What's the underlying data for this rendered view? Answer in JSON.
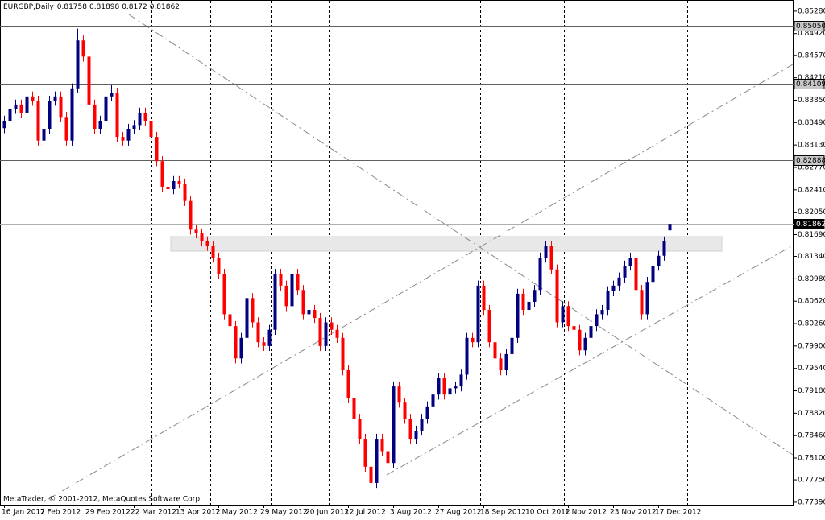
{
  "chart_data": {
    "type": "candlestick",
    "title": "EURGBP,Daily",
    "footer": "MetaTrader, © 2001-2012, MetaQuotes Software Corp.",
    "up_color": "#000080",
    "down_color": "#ff0000",
    "ylim": [
      0.7735,
      0.8546
    ],
    "yticks": [
      {
        "value": 0.8528,
        "label": "0.85280"
      },
      {
        "value": 0.8492,
        "label": "0.84920"
      },
      {
        "value": 0.8457,
        "label": "0.84570"
      },
      {
        "value": 0.8421,
        "label": "0.84210"
      },
      {
        "value": 0.8385,
        "label": "0.83850"
      },
      {
        "value": 0.8349,
        "label": "0.83490"
      },
      {
        "value": 0.8313,
        "label": "0.83130"
      },
      {
        "value": 0.8277,
        "label": "0.82770"
      },
      {
        "value": 0.8241,
        "label": "0.82410"
      },
      {
        "value": 0.8205,
        "label": "0.82050"
      },
      {
        "value": 0.8169,
        "label": "0.81690"
      },
      {
        "value": 0.8134,
        "label": "0.81340"
      },
      {
        "value": 0.8098,
        "label": "0.80980"
      },
      {
        "value": 0.8062,
        "label": "0.80620"
      },
      {
        "value": 0.8026,
        "label": "0.80260"
      },
      {
        "value": 0.799,
        "label": "0.79900"
      },
      {
        "value": 0.7954,
        "label": "0.79540"
      },
      {
        "value": 0.7918,
        "label": "0.79180"
      },
      {
        "value": 0.7882,
        "label": "0.78820"
      },
      {
        "value": 0.7846,
        "label": "0.78460"
      },
      {
        "value": 0.781,
        "label": "0.78100"
      },
      {
        "value": 0.7775,
        "label": "0.77750"
      },
      {
        "value": 0.7739,
        "label": "0.77390"
      }
    ],
    "levels": [
      {
        "value": 0.8505,
        "label": "0.85050"
      },
      {
        "value": 0.84109,
        "label": "0.84109"
      },
      {
        "value": 0.82888,
        "label": "0.82888"
      },
      {
        "value": 0.81862,
        "label": "0.81862"
      }
    ],
    "categories": [
      "16 Jan 2012",
      null,
      null,
      null,
      null,
      null,
      null,
      "7 Feb 2012",
      null,
      null,
      null,
      null,
      null,
      null,
      null,
      "29 Feb 2012",
      null,
      null,
      null,
      null,
      null,
      null,
      null,
      "22 Mar 2012",
      null,
      null,
      null,
      null,
      null,
      null,
      null,
      "13 Apr 2012",
      null,
      null,
      null,
      null,
      null,
      null,
      "7 May 2012",
      null,
      null,
      null,
      null,
      null,
      null,
      null,
      "29 May 2012",
      null,
      null,
      null,
      null,
      null,
      null,
      null,
      "20 Jun 2012",
      null,
      null,
      null,
      null,
      null,
      null,
      "12 Jul 2012",
      null,
      null,
      null,
      null,
      null,
      null,
      null,
      "3 Aug 2012",
      null,
      null,
      null,
      null,
      null,
      null,
      null,
      "27 Aug 2012",
      null,
      null,
      null,
      null,
      null,
      null,
      null,
      "18 Sep 2012",
      null,
      null,
      null,
      null,
      null,
      null,
      null,
      "10 Oct 2012",
      null,
      null,
      null,
      null,
      null,
      null,
      "1 Nov 2012",
      null,
      null,
      null,
      null,
      null,
      null,
      null,
      "23 Nov 2012",
      null,
      null,
      null,
      null,
      null,
      null,
      null,
      "17 Dec 2012",
      null,
      null
    ],
    "open": [
      0.834,
      0.8352,
      0.8371,
      0.8378,
      0.8365,
      0.8391,
      0.8384,
      0.832,
      0.8339,
      0.8384,
      0.8391,
      0.8358,
      0.832,
      0.8404,
      0.8481,
      0.8455,
      0.8378,
      0.8339,
      0.8352,
      0.8391,
      0.8397,
      0.8326,
      0.832,
      0.8339,
      0.8345,
      0.8365,
      0.8352,
      0.8326,
      0.8287,
      0.8246,
      0.8242,
      0.8255,
      0.8251,
      0.8223,
      0.8177,
      0.8171,
      0.8158,
      0.8151,
      0.8132,
      0.8106,
      0.8041,
      0.8022,
      0.797,
      0.8003,
      0.8067,
      0.8028,
      0.7996,
      0.799,
      0.8016,
      0.8106,
      0.8087,
      0.8054,
      0.8106,
      0.808,
      0.8041,
      0.8048,
      0.8035,
      0.799,
      0.8028,
      0.8016,
      0.8003,
      0.7951,
      0.7906,
      0.7873,
      0.7841,
      0.7796,
      0.777,
      0.7841,
      0.7821,
      0.7802,
      0.7925,
      0.7899,
      0.7873,
      0.7841,
      0.7854,
      0.7873,
      0.7893,
      0.7912,
      0.7938,
      0.7912,
      0.7922,
      0.7925,
      0.7944,
      0.8003,
      0.7996,
      0.8087,
      0.8048,
      0.7996,
      0.797,
      0.7951,
      0.7977,
      0.8003,
      0.8074,
      0.8048,
      0.8061,
      0.808,
      0.8132,
      0.8151,
      0.8113,
      0.8028,
      0.8054,
      0.8022,
      0.8016,
      0.7983,
      0.8003,
      0.8022,
      0.8041,
      0.8048,
      0.8078,
      0.8087,
      0.81,
      0.8119,
      0.8132,
      0.808,
      0.8041,
      0.8093,
      0.8119,
      0.8135,
      0.81758
    ],
    "high": [
      0.836,
      0.8379,
      0.8386,
      0.8386,
      0.8399,
      0.8399,
      0.8392,
      0.8347,
      0.8392,
      0.8399,
      0.8399,
      0.8366,
      0.8412,
      0.85,
      0.8489,
      0.8463,
      0.8386,
      0.836,
      0.8399,
      0.841,
      0.8405,
      0.8334,
      0.8347,
      0.8353,
      0.8373,
      0.8373,
      0.836,
      0.8334,
      0.8295,
      0.8254,
      0.8263,
      0.8263,
      0.8259,
      0.8231,
      0.8185,
      0.8179,
      0.8166,
      0.8159,
      0.814,
      0.8114,
      0.8049,
      0.803,
      0.8011,
      0.8075,
      0.8075,
      0.8036,
      0.8004,
      0.8024,
      0.8114,
      0.8114,
      0.8095,
      0.8114,
      0.8114,
      0.8088,
      0.8056,
      0.8056,
      0.8043,
      0.8036,
      0.8036,
      0.8024,
      0.8011,
      0.7959,
      0.7914,
      0.7881,
      0.7849,
      0.7804,
      0.7849,
      0.7849,
      0.7829,
      0.7933,
      0.7933,
      0.7907,
      0.7881,
      0.7862,
      0.7881,
      0.7901,
      0.792,
      0.7946,
      0.7946,
      0.793,
      0.7933,
      0.7952,
      0.8011,
      0.8011,
      0.8095,
      0.8095,
      0.8056,
      0.8004,
      0.7978,
      0.7985,
      0.8011,
      0.8082,
      0.8082,
      0.8069,
      0.8088,
      0.814,
      0.8159,
      0.8159,
      0.8121,
      0.8062,
      0.8062,
      0.803,
      0.8024,
      0.8011,
      0.803,
      0.8049,
      0.8056,
      0.8086,
      0.8095,
      0.8108,
      0.8127,
      0.814,
      0.814,
      0.8088,
      0.8101,
      0.8127,
      0.8143,
      0.8166,
      0.81898
    ],
    "low": [
      0.8332,
      0.8344,
      0.8363,
      0.8357,
      0.8357,
      0.8376,
      0.8312,
      0.8312,
      0.8331,
      0.8376,
      0.835,
      0.8312,
      0.8312,
      0.8396,
      0.8447,
      0.837,
      0.8331,
      0.8331,
      0.8344,
      0.8383,
      0.8318,
      0.8312,
      0.8312,
      0.8331,
      0.8337,
      0.8344,
      0.8318,
      0.8279,
      0.8238,
      0.8234,
      0.8234,
      0.8243,
      0.8215,
      0.8169,
      0.8163,
      0.815,
      0.8143,
      0.8124,
      0.8098,
      0.8033,
      0.8014,
      0.7962,
      0.7962,
      0.7995,
      0.802,
      0.7988,
      0.7982,
      0.7982,
      0.8008,
      0.8079,
      0.8046,
      0.8046,
      0.8072,
      0.8033,
      0.8033,
      0.8027,
      0.7982,
      0.7982,
      0.8008,
      0.7995,
      0.7943,
      0.7898,
      0.7865,
      0.7833,
      0.7788,
      0.7762,
      0.7762,
      0.7813,
      0.7794,
      0.7794,
      0.7891,
      0.7865,
      0.7833,
      0.7833,
      0.7846,
      0.7865,
      0.7885,
      0.7904,
      0.7904,
      0.7904,
      0.7914,
      0.7917,
      0.7936,
      0.7988,
      0.7988,
      0.804,
      0.7988,
      0.7962,
      0.7943,
      0.7943,
      0.7969,
      0.7995,
      0.804,
      0.804,
      0.8053,
      0.8072,
      0.8124,
      0.8105,
      0.802,
      0.802,
      0.8014,
      0.8008,
      0.7975,
      0.7975,
      0.7995,
      0.8014,
      0.8033,
      0.804,
      0.807,
      0.8079,
      0.8092,
      0.8111,
      0.8072,
      0.8033,
      0.8033,
      0.8085,
      0.8111,
      0.8127,
      0.8172
    ],
    "close": [
      0.8352,
      0.8371,
      0.8378,
      0.8365,
      0.8391,
      0.8384,
      0.832,
      0.8339,
      0.8384,
      0.8391,
      0.8358,
      0.832,
      0.8404,
      0.8481,
      0.8455,
      0.8378,
      0.8339,
      0.8352,
      0.8391,
      0.8397,
      0.8326,
      0.832,
      0.8339,
      0.8345,
      0.8365,
      0.8352,
      0.8326,
      0.8287,
      0.8246,
      0.8242,
      0.8255,
      0.8251,
      0.8223,
      0.8177,
      0.8171,
      0.8158,
      0.8151,
      0.8132,
      0.8106,
      0.8041,
      0.8022,
      0.797,
      0.8003,
      0.8067,
      0.8028,
      0.7996,
      0.799,
      0.8016,
      0.8106,
      0.8087,
      0.8054,
      0.8106,
      0.808,
      0.8041,
      0.8048,
      0.8035,
      0.799,
      0.8028,
      0.8016,
      0.8003,
      0.7951,
      0.7906,
      0.7873,
      0.7841,
      0.7796,
      0.777,
      0.7841,
      0.7821,
      0.7802,
      0.7925,
      0.7899,
      0.7873,
      0.7841,
      0.7854,
      0.7873,
      0.7893,
      0.7912,
      0.7938,
      0.7912,
      0.7922,
      0.7925,
      0.7944,
      0.8003,
      0.7996,
      0.8087,
      0.8048,
      0.7996,
      0.797,
      0.7951,
      0.7977,
      0.8003,
      0.8074,
      0.8048,
      0.8061,
      0.808,
      0.8132,
      0.8151,
      0.8113,
      0.8028,
      0.8054,
      0.8022,
      0.8016,
      0.7983,
      0.8003,
      0.8022,
      0.8041,
      0.8048,
      0.8078,
      0.8087,
      0.81,
      0.8119,
      0.8132,
      0.808,
      0.8041,
      0.8093,
      0.8119,
      0.8135,
      0.8158,
      0.81862
    ]
  }
}
